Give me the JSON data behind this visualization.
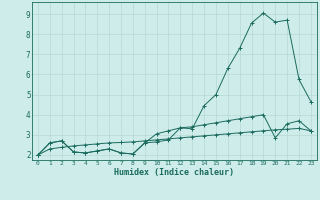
{
  "xlabel": "Humidex (Indice chaleur)",
  "background_color": "#ceecea",
  "grid_color": "#b8d8d5",
  "line_color": "#1a6b5e",
  "x_values": [
    0,
    1,
    2,
    3,
    4,
    5,
    6,
    7,
    8,
    9,
    10,
    11,
    12,
    13,
    14,
    15,
    16,
    17,
    18,
    19,
    20,
    21,
    22,
    23
  ],
  "series1": [
    2.0,
    2.6,
    2.7,
    2.15,
    2.1,
    2.2,
    2.3,
    2.1,
    2.05,
    2.6,
    2.65,
    2.75,
    3.35,
    3.3,
    4.45,
    5.0,
    6.3,
    7.3,
    8.55,
    9.05,
    8.6,
    8.7,
    5.75,
    4.65
  ],
  "series2": [
    2.0,
    2.6,
    2.7,
    2.15,
    2.1,
    2.2,
    2.3,
    2.1,
    2.05,
    2.6,
    3.05,
    3.2,
    3.35,
    3.4,
    3.5,
    3.6,
    3.7,
    3.8,
    3.9,
    4.0,
    2.85,
    3.55,
    3.7,
    3.2
  ],
  "series3": [
    2.0,
    2.3,
    2.38,
    2.45,
    2.5,
    2.55,
    2.6,
    2.62,
    2.65,
    2.7,
    2.75,
    2.8,
    2.85,
    2.9,
    2.95,
    3.0,
    3.05,
    3.1,
    3.15,
    3.2,
    3.25,
    3.28,
    3.32,
    3.2
  ],
  "ylim": [
    1.75,
    9.6
  ],
  "xlim": [
    -0.5,
    23.5
  ],
  "yticks": [
    2,
    3,
    4,
    5,
    6,
    7,
    8,
    9
  ],
  "xticks": [
    0,
    1,
    2,
    3,
    4,
    5,
    6,
    7,
    8,
    9,
    10,
    11,
    12,
    13,
    14,
    15,
    16,
    17,
    18,
    19,
    20,
    21,
    22,
    23
  ]
}
